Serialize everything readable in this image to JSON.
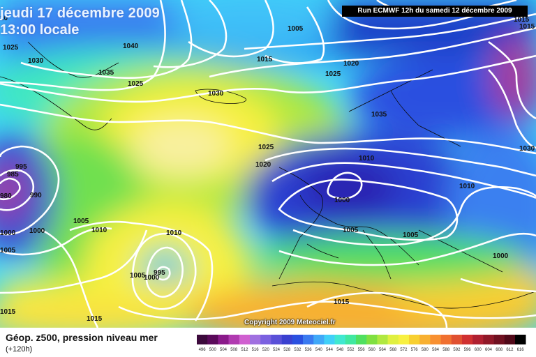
{
  "header": {
    "date_line": "jeudi 17 décembre 2009",
    "time_line": "13:00 locale",
    "run_info": "Run ECMWF 12h du samedi 12 décembre 2009"
  },
  "footer": {
    "title": "Géop. z500, pression niveau mer",
    "lead_time": "(+120h)",
    "copyright": "Copyright 2009 Meteociel.fr"
  },
  "isobar_labels": [
    {
      "id": "iso-1005-top",
      "text": "1005"
    },
    {
      "id": "iso-1015-nc",
      "text": "1015"
    },
    {
      "id": "iso-1020-ne",
      "text": "1020"
    },
    {
      "id": "iso-1025-ne",
      "text": "1025"
    },
    {
      "id": "iso-1035-scand",
      "text": "1035"
    },
    {
      "id": "iso-1040",
      "text": "1040"
    },
    {
      "id": "iso-1035-w",
      "text": "1035"
    },
    {
      "id": "iso-1025-w",
      "text": "1025"
    },
    {
      "id": "iso-1030-green",
      "text": "1030"
    },
    {
      "id": "iso-1030-ice",
      "text": "1030"
    },
    {
      "id": "iso-1025-nw",
      "text": "1025"
    },
    {
      "id": "iso-1010-nw",
      "text": "10"
    },
    {
      "id": "iso-1025-c",
      "text": "1025"
    },
    {
      "id": "iso-1020-c",
      "text": "1020"
    },
    {
      "id": "iso-1010-low",
      "text": "1010"
    },
    {
      "id": "iso-1000-low",
      "text": "1000"
    },
    {
      "id": "iso-1005-eur",
      "text": "1005"
    },
    {
      "id": "iso-1005-ita",
      "text": "1005"
    },
    {
      "id": "iso-1010-e",
      "text": "1010"
    },
    {
      "id": "iso-1000-e",
      "text": "1000"
    },
    {
      "id": "iso-1030-e",
      "text": "1030"
    },
    {
      "id": "iso-1015-ne2",
      "text": "1015"
    },
    {
      "id": "iso-1015-tr",
      "text": "1015"
    },
    {
      "id": "iso-995",
      "text": "995"
    },
    {
      "id": "iso-985",
      "text": "985"
    },
    {
      "id": "iso-980",
      "text": "980"
    },
    {
      "id": "iso-990",
      "text": "990"
    },
    {
      "id": "iso-1000-w",
      "text": "1000"
    },
    {
      "id": "iso-1000-w2",
      "text": "1000"
    },
    {
      "id": "iso-1005-w",
      "text": "1005"
    },
    {
      "id": "iso-1005-mid",
      "text": "1005"
    },
    {
      "id": "iso-1010-mid",
      "text": "1010"
    },
    {
      "id": "iso-1010-atl",
      "text": "1010"
    },
    {
      "id": "iso-1005-cut",
      "text": "1005"
    },
    {
      "id": "iso-1000-cut",
      "text": "1000"
    },
    {
      "id": "iso-995-cut",
      "text": "995"
    },
    {
      "id": "iso-1015-sw",
      "text": "1015"
    },
    {
      "id": "iso-1015-s",
      "text": "1015"
    },
    {
      "id": "iso-1015-afr",
      "text": "1015"
    }
  ],
  "scale": {
    "labels": [
      "496",
      "500",
      "504",
      "508",
      "512",
      "516",
      "520",
      "524",
      "528",
      "532",
      "536",
      "540",
      "544",
      "548",
      "552",
      "556",
      "560",
      "564",
      "568",
      "572",
      "576",
      "580",
      "584",
      "588",
      "592",
      "596",
      "600",
      "604",
      "608",
      "612",
      "616"
    ],
    "colors": [
      "#3c0a3c",
      "#5a0a5a",
      "#8a1a8a",
      "#b03ab0",
      "#d060d0",
      "#a070e0",
      "#7a60e0",
      "#5a50d8",
      "#3a40d0",
      "#2a50e0",
      "#3a7af0",
      "#40a8f8",
      "#40d0f8",
      "#40e8d0",
      "#40e8a0",
      "#50e060",
      "#80e040",
      "#b0e840",
      "#e0f040",
      "#f8f040",
      "#f8d030",
      "#f8b030",
      "#f89030",
      "#f07030",
      "#e05030",
      "#d03030",
      "#b02030",
      "#901828",
      "#701020",
      "#500818",
      "#000000"
    ]
  }
}
